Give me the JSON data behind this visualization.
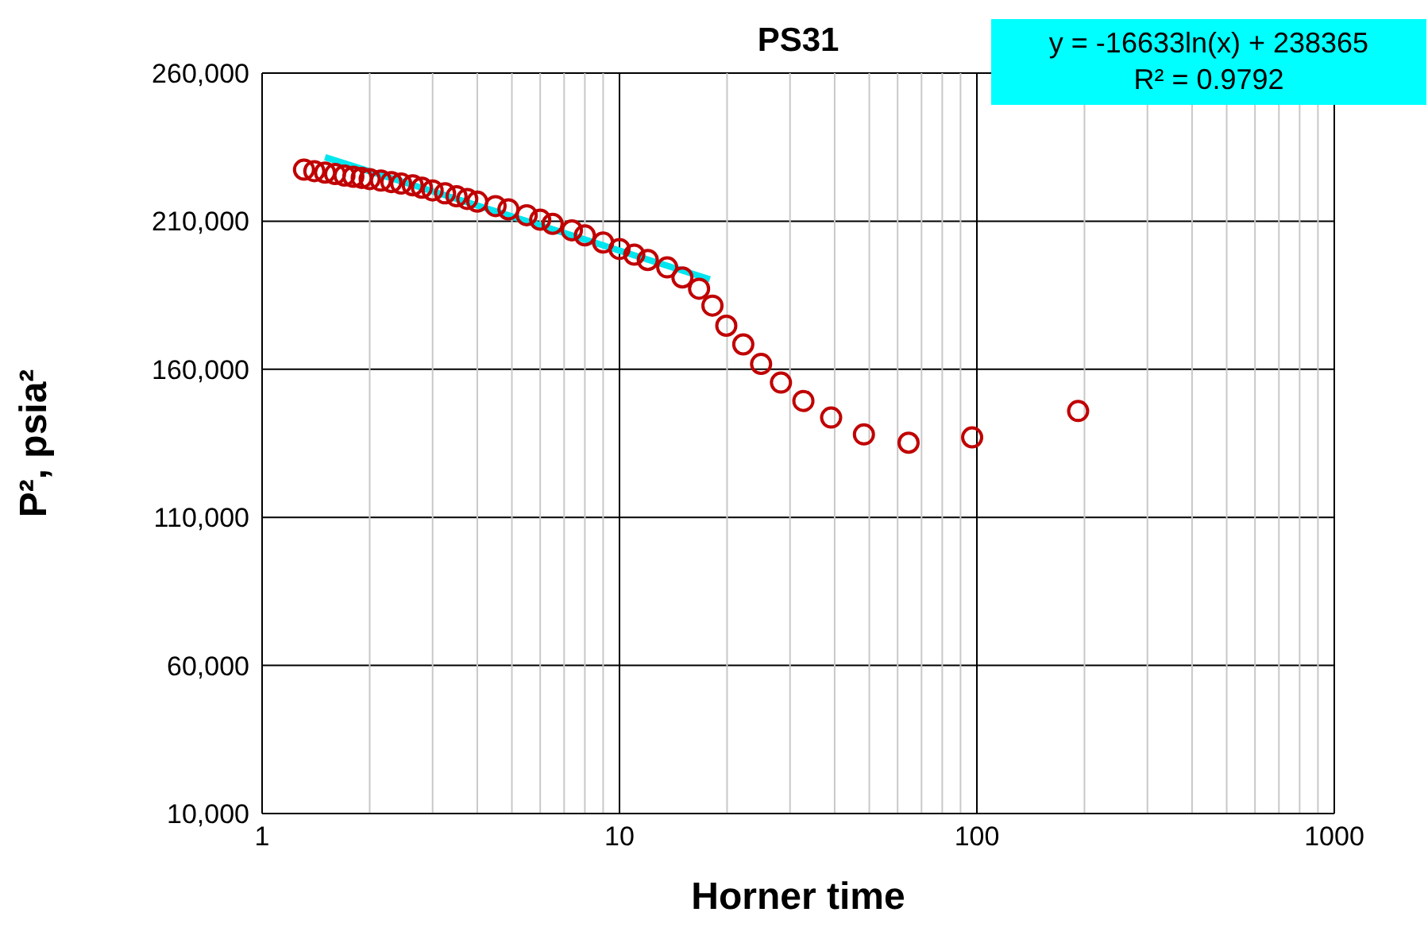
{
  "chart_data": {
    "type": "scatter",
    "title": "PS31",
    "xlabel": "Horner time",
    "ylabel": "P², psia²",
    "annotations": [
      "y = -16633ln(x) + 238365",
      "R² = 0.9792"
    ],
    "series": [
      {
        "color": "#c00000",
        "x": [
          1.31,
          1.4,
          1.5,
          1.6,
          1.7,
          1.8,
          1.9,
          2.0,
          2.15,
          2.3,
          2.45,
          2.64,
          2.8,
          3.0,
          3.25,
          3.5,
          3.75,
          4.0,
          4.5,
          4.89,
          5.5,
          6.0,
          6.5,
          7.36,
          8.0,
          9.0,
          10,
          11,
          12,
          13.6,
          15,
          16.7,
          18.2,
          19.9,
          22.2,
          24.9,
          28.3,
          32.7,
          39.1,
          48.3,
          64.4,
          97,
          192
        ],
        "values": [
          227400,
          226900,
          226400,
          225900,
          225400,
          225000,
          224600,
          224200,
          223700,
          223200,
          222700,
          222100,
          221300,
          220400,
          219400,
          218400,
          217500,
          216600,
          215100,
          214000,
          212000,
          210500,
          209100,
          206900,
          205200,
          202800,
          200600,
          198700,
          196900,
          194400,
          191000,
          187200,
          181500,
          174700,
          168400,
          161800,
          155500,
          149300,
          143700,
          138000,
          135200,
          137000,
          145900
        ]
      },
      {
        "type": "line",
        "marker": "none",
        "color": "#00e5ee",
        "x": [
          1.5,
          5,
          17.9
        ],
        "values": [
          231600,
          211600,
          190400
        ]
      }
    ],
    "marker": "circle",
    "line_style": "solid",
    "xlim": [
      1,
      1000
    ],
    "xticks": [
      1,
      10,
      100,
      1000
    ],
    "log": "x",
    "ylim": [
      10000,
      260000
    ],
    "yticks": [
      {
        "value": 10000,
        "label": "10,000"
      },
      {
        "value": 60000,
        "label": "60,000"
      },
      {
        "value": 110000,
        "label": "110,000"
      },
      {
        "value": 160000,
        "label": "160,000"
      },
      {
        "value": 210000,
        "label": "210,000"
      },
      {
        "value": 260000,
        "label": "260,000"
      }
    ],
    "grid": true
  }
}
